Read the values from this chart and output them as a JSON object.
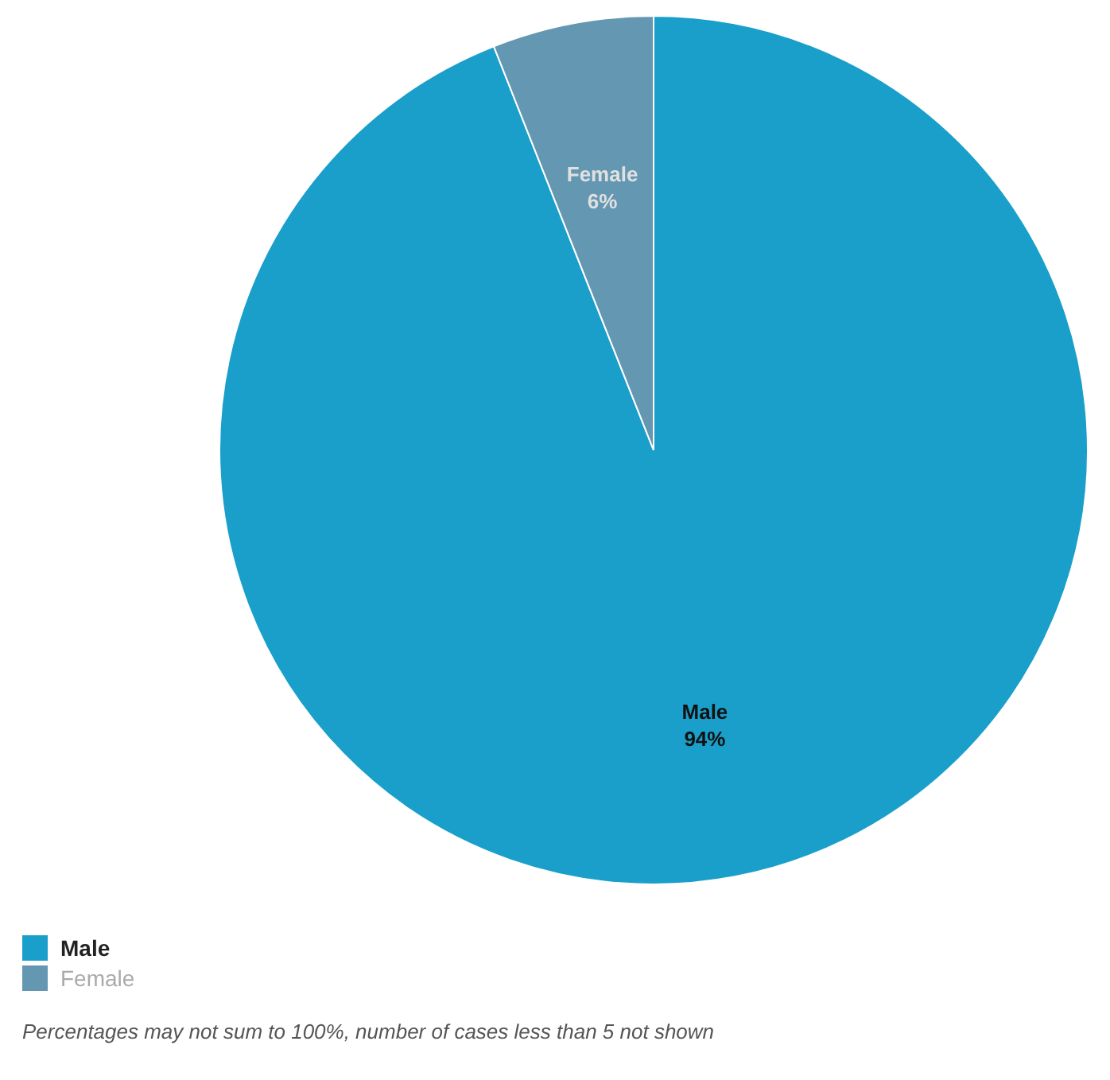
{
  "chart_data": {
    "type": "pie",
    "categories": [
      "Male",
      "Female"
    ],
    "values": [
      94,
      6
    ],
    "value_labels": [
      "94%",
      "6%"
    ],
    "colors": [
      "#1a9fcb",
      "#6497b1"
    ],
    "legend": "bottom left",
    "annotations": [
      "Percentages may not sum to 100%, number of cases less than 5 not shown"
    ]
  }
}
